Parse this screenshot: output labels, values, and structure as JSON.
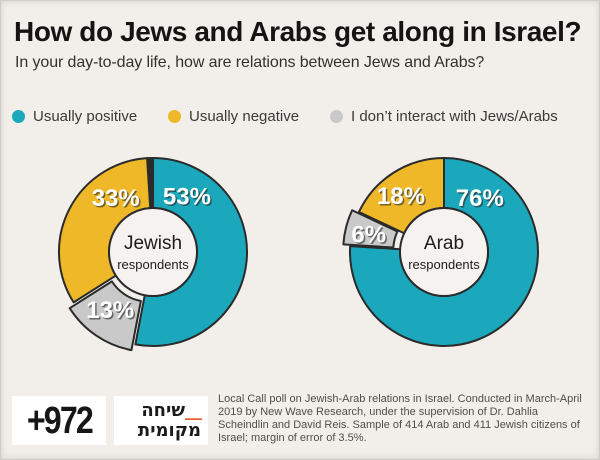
{
  "page": {
    "title": "How do Jews and Arabs get along in Israel?",
    "subtitle": "In your day-to-day life, how are relations between Jews and Arabs?"
  },
  "colors": {
    "background": "#f2efeb",
    "positive_teal": "#1ba8bd",
    "negative_yellow": "#eeb829",
    "no_interact_gray": "#c9c9c9",
    "outline_dark": "#2b2b2b",
    "hole_fill": "#f5f2ef",
    "logo_orange": "#e65a2b"
  },
  "legend": [
    {
      "label": "Usually positive",
      "color": "#1ba8bd"
    },
    {
      "label": "Usually negative",
      "color": "#eeb829"
    },
    {
      "label": "I don’t interact with Jews/Arabs",
      "color": "#c9c9c9"
    }
  ],
  "chart_data": [
    {
      "type": "pie",
      "subtype": "donut",
      "group": "Jewish respondents",
      "center_label": {
        "line1": "Jewish",
        "line2": "respondents"
      },
      "categories": [
        "Usually positive",
        "I don’t interact with Jews/Arabs",
        "Usually negative"
      ],
      "slices": [
        {
          "category": "Usually positive",
          "value": 53,
          "display": "53%",
          "color": "#1ba8bd",
          "exploded": false,
          "label_angle_deg": 32,
          "label_radius": 64
        },
        {
          "category": "I don’t interact with Jews/Arabs",
          "value": 13,
          "display": "13%",
          "color": "#c9c9c9",
          "exploded": true,
          "label_angle_deg": 216,
          "label_radius": 66
        },
        {
          "category": "Usually negative",
          "value": 33,
          "display": "33%",
          "color": "#eeb829",
          "exploded": false,
          "label_angle_deg": 325,
          "label_radius": 65
        }
      ],
      "unlabeled_remainder_pct": 1
    },
    {
      "type": "pie",
      "subtype": "donut",
      "group": "Arab respondents",
      "center_label": {
        "line1": "Arab",
        "line2": "respondents"
      },
      "categories": [
        "Usually positive",
        "I don’t interact with Jews/Arabs",
        "Usually negative"
      ],
      "slices": [
        {
          "category": "Usually positive",
          "value": 76,
          "display": "76%",
          "color": "#1ba8bd",
          "exploded": false,
          "label_angle_deg": 34,
          "label_radius": 64
        },
        {
          "category": "I don’t interact with Jews/Arabs",
          "value": 6,
          "display": "6%",
          "color": "#c9c9c9",
          "exploded": true,
          "label_angle_deg": 282,
          "label_radius": 70
        },
        {
          "category": "Usually negative",
          "value": 18,
          "display": "18%",
          "color": "#eeb829",
          "exploded": false,
          "label_angle_deg": 322,
          "label_radius": 70
        }
      ],
      "unlabeled_remainder_pct": 0
    }
  ],
  "footer": {
    "logo_972": "+972",
    "logo_hebrew_line1": "שיחה",
    "logo_hebrew_underscore": "__",
    "logo_hebrew_line2": "מקומית",
    "source": "Local Call poll on Jewish-Arab relations in Israel. Conducted in March-April 2019 by New Wave Research, under the supervision of Dr. Dahlia Scheindlin and David Reis. Sample of 414 Arab and 411 Jewish citizens of Israel; margin of error of 3.5%."
  }
}
